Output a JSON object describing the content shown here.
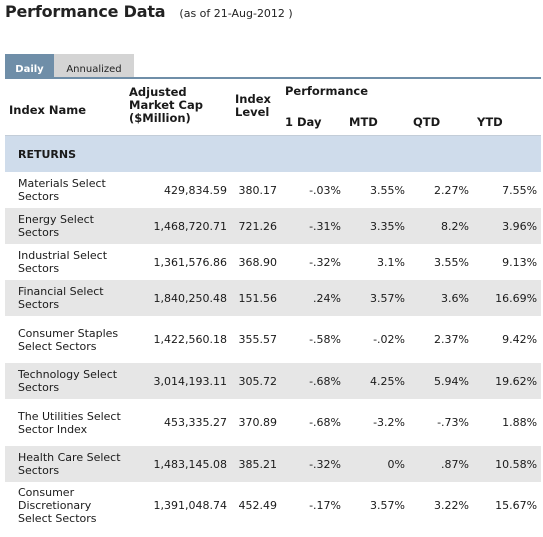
{
  "header": {
    "title": "Performance Data",
    "as_of": "(as of 21-Aug-2012 )"
  },
  "tabs": [
    {
      "label": "Daily",
      "active": true
    },
    {
      "label": "Annualized",
      "active": false
    }
  ],
  "table": {
    "headers": {
      "index_name": "Index Name",
      "market_cap": "Adjusted Market Cap ($Million)",
      "index_level": "Index Level",
      "performance": "Performance",
      "one_day": "1 Day",
      "mtd": "MTD",
      "qtd": "QTD",
      "ytd": "YTD"
    },
    "section_label": "RETURNS",
    "rows": [
      {
        "name": "Materials Select Sectors",
        "cap": "429,834.59",
        "level": "380.17",
        "day": "-.03%",
        "mtd": "3.55%",
        "qtd": "2.27%",
        "ytd": "7.55%"
      },
      {
        "name": "Energy Select Sectors",
        "cap": "1,468,720.71",
        "level": "721.26",
        "day": "-.31%",
        "mtd": "3.35%",
        "qtd": "8.2%",
        "ytd": "3.96%"
      },
      {
        "name": "Industrial Select Sectors",
        "cap": "1,361,576.86",
        "level": "368.90",
        "day": "-.32%",
        "mtd": "3.1%",
        "qtd": "3.55%",
        "ytd": "9.13%"
      },
      {
        "name": "Financial Select Sectors",
        "cap": "1,840,250.48",
        "level": "151.56",
        "day": ".24%",
        "mtd": "3.57%",
        "qtd": "3.6%",
        "ytd": "16.69%"
      },
      {
        "name": "Consumer Staples Select Sectors",
        "cap": "1,422,560.18",
        "level": "355.57",
        "day": "-.58%",
        "mtd": "-.02%",
        "qtd": "2.37%",
        "ytd": "9.42%"
      },
      {
        "name": "Technology Select Sectors",
        "cap": "3,014,193.11",
        "level": "305.72",
        "day": "-.68%",
        "mtd": "4.25%",
        "qtd": "5.94%",
        "ytd": "19.62%"
      },
      {
        "name": "The Utilities Select Sector Index",
        "cap": "453,335.27",
        "level": "370.89",
        "day": "-.68%",
        "mtd": "-3.2%",
        "qtd": "-.73%",
        "ytd": "1.88%"
      },
      {
        "name": "Health Care Select Sectors",
        "cap": "1,483,145.08",
        "level": "385.21",
        "day": "-.32%",
        "mtd": "0%",
        "qtd": ".87%",
        "ytd": "10.58%"
      },
      {
        "name": "Consumer Discretionary Select Sectors",
        "cap": "1,391,048.74",
        "level": "452.49",
        "day": "-.17%",
        "mtd": "3.57%",
        "qtd": "3.22%",
        "ytd": "15.67%"
      }
    ]
  },
  "colors": {
    "tab_active": "#6f8ea8",
    "tab_inactive": "#d4d4d4",
    "section_bg": "#cfdceb",
    "row_alt": "#e6e6e6"
  }
}
